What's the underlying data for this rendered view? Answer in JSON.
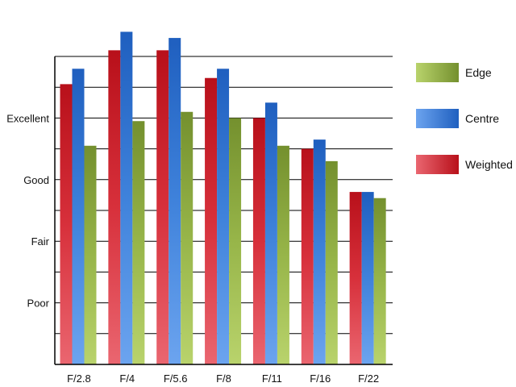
{
  "chart_data": {
    "type": "bar",
    "categories": [
      "F/2.8",
      "F/4",
      "F/5.6",
      "F/8",
      "F/11",
      "F/16",
      "F/22"
    ],
    "y_tick_labels": [
      "Poor",
      "Fair",
      "Good",
      "Excellent"
    ],
    "y_tick_values": [
      2,
      4,
      6,
      8
    ],
    "ylim": [
      0,
      10
    ],
    "grid": true,
    "legend_position": "right",
    "series": [
      {
        "name": "Weighted",
        "color": "#c0141e",
        "values": [
          9.1,
          10.2,
          10.2,
          9.3,
          8.0,
          7.0,
          5.6
        ]
      },
      {
        "name": "Centre",
        "color": "#2266c0",
        "values": [
          9.6,
          10.8,
          10.6,
          9.6,
          8.5,
          7.3,
          5.6
        ]
      },
      {
        "name": "Edge",
        "color": "#7c9834",
        "values": [
          7.1,
          7.9,
          8.2,
          8.0,
          7.1,
          6.6,
          5.4
        ]
      }
    ],
    "legend_order": [
      "Edge",
      "Centre",
      "Weighted"
    ]
  }
}
